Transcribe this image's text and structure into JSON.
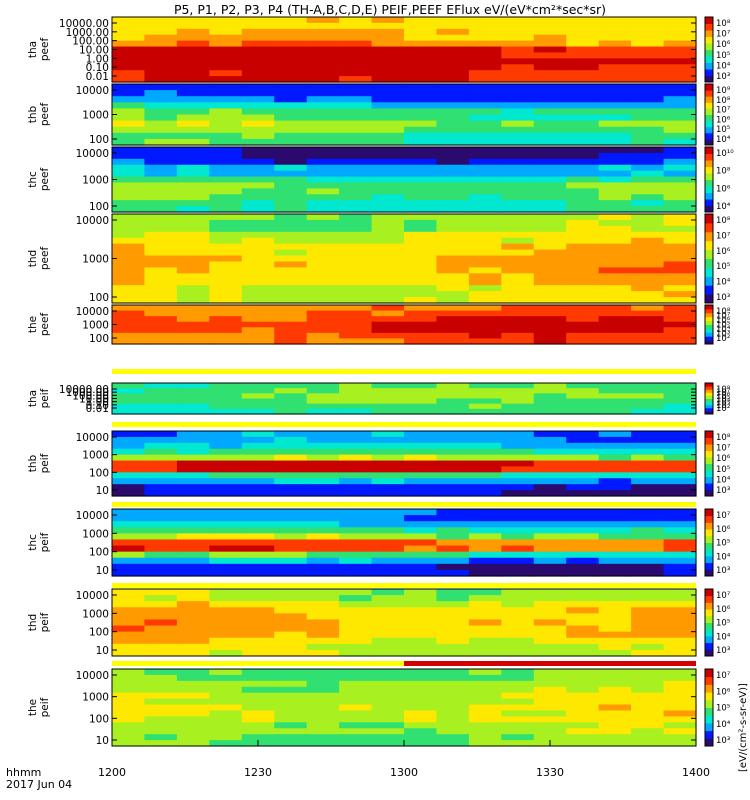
{
  "chart_data": {
    "type": "heatmap",
    "title": "P5, P1, P2, P3, P4 (TH-A,B,C,D,E) PEIF,PEEF EFlux eV/(eV*cm²*sec*sr)",
    "x_axis": {
      "ticks": [
        "1200",
        "1230",
        "1300",
        "1330",
        "1400"
      ],
      "footer_label": "hhmm",
      "footer_date": "2017 Jun 04",
      "range_minutes": [
        0,
        120
      ]
    },
    "colorbar_unit": "eV/(cm^2-s-sr-eV)",
    "colorbar_unit_label": "[eV/(cm²-s-sr-eV)]",
    "colormap": [
      "#2b0a6e",
      "#0019ff",
      "#00a8ff",
      "#00e8d0",
      "#30e070",
      "#a8f020",
      "#ffe800",
      "#ff9a00",
      "#ff3a00",
      "#c80000"
    ],
    "panels": [
      {
        "probe": "tha",
        "product": "peef",
        "label": "tha\npeef",
        "ylog": true,
        "yticks": [
          "10000.00",
          "1000.00",
          "100.00",
          "10.00",
          "1.00",
          "0.10",
          "0.01"
        ],
        "cbar_ticks": [
          "10⁸",
          "10⁷",
          "10⁶",
          "10⁵",
          "10⁴",
          "10³"
        ],
        "level_range": [
          0.6,
          1.0
        ],
        "profile": [
          0.62,
          0.66,
          0.7,
          0.76,
          0.92,
          0.99,
          0.95,
          0.88
        ],
        "strip": false
      },
      {
        "probe": "thb",
        "product": "peef",
        "label": "thb\npeef",
        "ylog": true,
        "yticks": [
          "10000",
          "1000",
          "100"
        ],
        "cbar_ticks": [
          "10⁹",
          "10⁸",
          "10⁷",
          "10⁶",
          "10⁵",
          "10⁴"
        ],
        "level_range": [
          0.1,
          0.6
        ],
        "profile": [
          0.12,
          0.2,
          0.32,
          0.45,
          0.55,
          0.5,
          0.42
        ],
        "strip": false
      },
      {
        "probe": "thc",
        "product": "peef",
        "label": "thc\npeef",
        "ylog": true,
        "yticks": [
          "10000",
          "1000",
          "100"
        ],
        "cbar_ticks": [
          "10¹⁰",
          "10⁸",
          "10⁶",
          "10⁴"
        ],
        "level_range": [
          0.05,
          0.6
        ],
        "profile": [
          0.08,
          0.15,
          0.28,
          0.42,
          0.52,
          0.48,
          0.4
        ],
        "strip": false
      },
      {
        "probe": "thd",
        "product": "peef",
        "label": "thd\npeef",
        "ylog": true,
        "yticks": [
          "10000",
          "1000",
          "100"
        ],
        "cbar_ticks": [
          "10⁸",
          "10⁷",
          "10⁶",
          "10⁵",
          "10⁴",
          "10³"
        ],
        "level_range": [
          0.3,
          0.85
        ],
        "profile": [
          0.55,
          0.62,
          0.68,
          0.72,
          0.7,
          0.62
        ],
        "strip": false
      },
      {
        "probe": "the",
        "product": "peef",
        "label": "the\npeef",
        "ylog": true,
        "yticks": [
          "10000",
          "1000",
          "100"
        ],
        "cbar_ticks": [
          "10⁸",
          "10⁷",
          "10⁶",
          "10⁵",
          "10⁴",
          "10³",
          "10²"
        ],
        "level_range": [
          0.7,
          1.0
        ],
        "profile": [
          0.78,
          0.82,
          0.86,
          0.9,
          0.88,
          0.82
        ],
        "strip": false
      },
      {
        "probe": "tha",
        "product": "peif",
        "label": "tha\npeif",
        "ylog": true,
        "yticks": [
          "10000.00",
          "1000.00",
          "100.00",
          "10.00",
          "1.00",
          "0.10",
          "0.01"
        ],
        "cbar_ticks": [
          "10⁸",
          "10⁷",
          "10⁶",
          "10⁵",
          "10⁴",
          "10³",
          "10²"
        ],
        "level_range": [
          0.25,
          0.85
        ],
        "profile": [
          0.45,
          0.48,
          0.5,
          0.5,
          0.46,
          0.42,
          0.38
        ],
        "strip": true
      },
      {
        "probe": "thb",
        "product": "peif",
        "label": "thb\npeif",
        "ylog": true,
        "yticks": [
          "10000",
          "1000",
          "100",
          "10"
        ],
        "cbar_ticks": [
          "10⁸",
          "10⁷",
          "10⁶",
          "10⁵",
          "10⁴",
          "10³"
        ],
        "level_range": [
          0.05,
          0.95
        ],
        "profile": [
          0.22,
          0.3,
          0.4,
          0.55,
          0.9,
          0.4,
          0.25,
          0.12
        ],
        "strip": true
      },
      {
        "probe": "thc",
        "product": "peif",
        "label": "thc\npeif",
        "ylog": true,
        "yticks": [
          "10000",
          "1000",
          "100",
          "10"
        ],
        "cbar_ticks": [
          "10⁷",
          "10⁶",
          "10⁵",
          "10⁴",
          "10³"
        ],
        "level_range": [
          0.05,
          0.9
        ],
        "profile": [
          0.2,
          0.3,
          0.42,
          0.55,
          0.85,
          0.45,
          0.25,
          0.1
        ],
        "strip": true
      },
      {
        "probe": "thd",
        "product": "peif",
        "label": "thd\npeif",
        "ylog": true,
        "yticks": [
          "10000",
          "1000",
          "100",
          "10"
        ],
        "cbar_ticks": [
          "10⁷",
          "10⁶",
          "10⁵",
          "10⁴",
          "10³"
        ],
        "level_range": [
          0.4,
          0.95
        ],
        "profile": [
          0.55,
          0.62,
          0.7,
          0.74,
          0.72,
          0.66,
          0.6
        ],
        "strip": true
      },
      {
        "probe": "the",
        "product": "peif",
        "label": "the\npeif",
        "ylog": true,
        "yticks": [
          "10000",
          "1000",
          "100",
          "10"
        ],
        "cbar_ticks": [
          "10⁷",
          "10⁶",
          "10⁵",
          "10⁴",
          "10³"
        ],
        "level_range": [
          0.35,
          0.95
        ],
        "profile": [
          0.5,
          0.55,
          0.6,
          0.64,
          0.62,
          0.56,
          0.5
        ],
        "strip": true
      }
    ]
  }
}
